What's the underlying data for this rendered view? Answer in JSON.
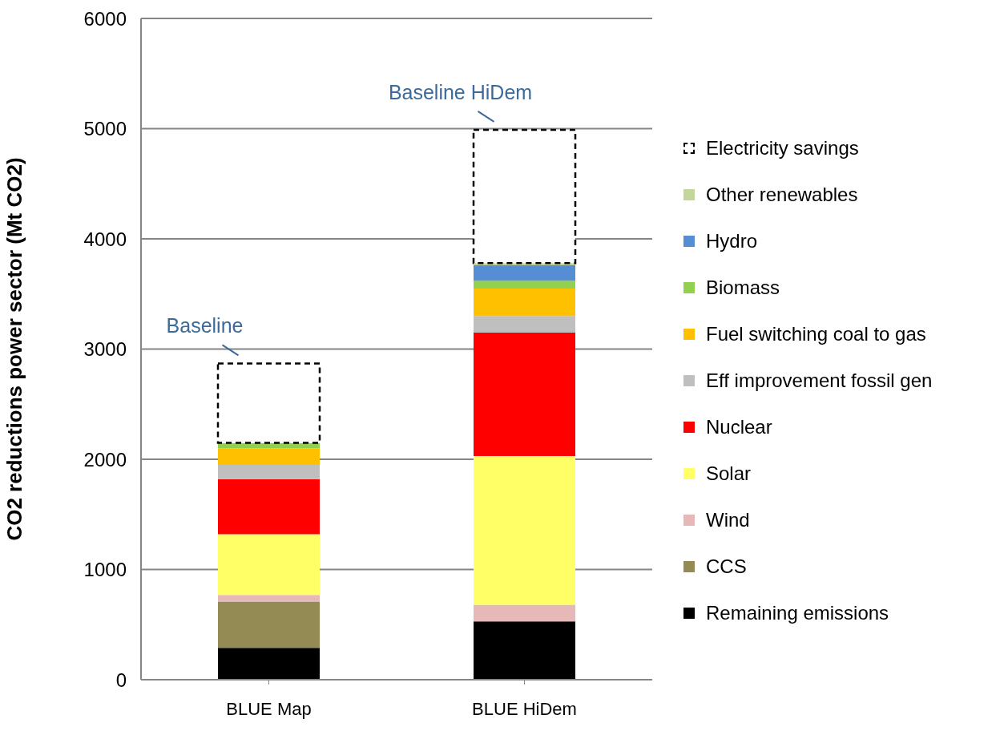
{
  "chart_data": {
    "type": "bar",
    "stacked": true,
    "categories": [
      "BLUE Map",
      "BLUE HiDem"
    ],
    "ylabel": "CO2 reductions power sector (Mt CO2)",
    "ylim": [
      0,
      6000
    ],
    "yticks": [
      0,
      1000,
      2000,
      3000,
      4000,
      5000,
      6000
    ],
    "grid": "y",
    "legend": "right",
    "series": [
      {
        "name": "Remaining emissions",
        "color": "#000000",
        "values": [
          290,
          530
        ]
      },
      {
        "name": "CCS",
        "color": "#948a54",
        "values": [
          420,
          0
        ]
      },
      {
        "name": "Wind",
        "color": "#e6b9b8",
        "values": [
          60,
          150
        ]
      },
      {
        "name": "Solar",
        "color": "#ffff66",
        "values": [
          550,
          1350
        ]
      },
      {
        "name": "Nuclear",
        "color": "#ff0000",
        "values": [
          500,
          1120
        ]
      },
      {
        "name": "Eff improvement fossil gen",
        "color": "#bfbfbf",
        "values": [
          130,
          150
        ]
      },
      {
        "name": "Fuel switching coal to gas",
        "color": "#ffc000",
        "values": [
          150,
          250
        ]
      },
      {
        "name": "Biomass",
        "color": "#92d050",
        "values": [
          50,
          70
        ]
      },
      {
        "name": "Hydro",
        "color": "#558ed5",
        "values": [
          0,
          140
        ]
      },
      {
        "name": "Other renewables",
        "color": "#c3d69b",
        "values": [
          0,
          20
        ]
      },
      {
        "name": "Electricity savings",
        "color": "#ffffff",
        "line_style": "dashed",
        "values": [
          720,
          1210
        ]
      }
    ],
    "annotations": [
      {
        "text": "Baseline",
        "x": "BLUE Map",
        "y": 2870
      },
      {
        "text": "Baseline HiDem",
        "x": "BLUE HiDem",
        "y": 4990
      }
    ]
  }
}
